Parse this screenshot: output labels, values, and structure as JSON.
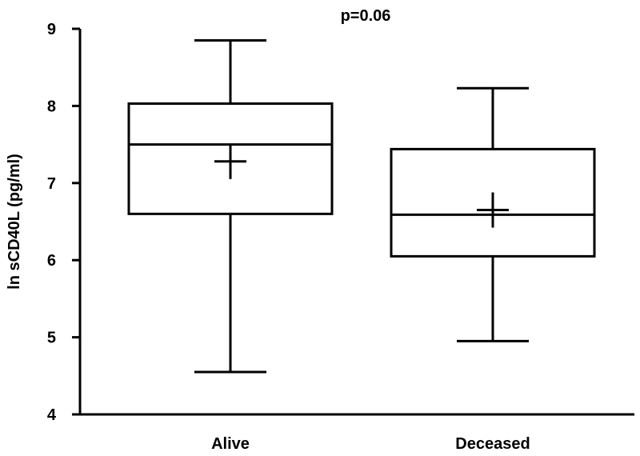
{
  "chart_data": {
    "type": "box",
    "title": "",
    "annotation": "p=0.06",
    "xlabel": "",
    "ylabel": "ln sCD40L (pg/ml)",
    "ylim": [
      4,
      9
    ],
    "yticks": [
      4,
      5,
      6,
      7,
      8,
      9
    ],
    "categories": [
      "Alive",
      "Deceased"
    ],
    "boxes": [
      {
        "category": "Alive",
        "min": 4.55,
        "q1": 6.6,
        "median": 7.5,
        "q3": 8.03,
        "max": 8.85,
        "mean": 7.28
      },
      {
        "category": "Deceased",
        "min": 4.95,
        "q1": 6.05,
        "median": 6.59,
        "q3": 7.44,
        "max": 8.23,
        "mean": 6.65
      }
    ],
    "grid": false,
    "colors": {
      "stroke": "#000000",
      "background": "#ffffff"
    }
  }
}
